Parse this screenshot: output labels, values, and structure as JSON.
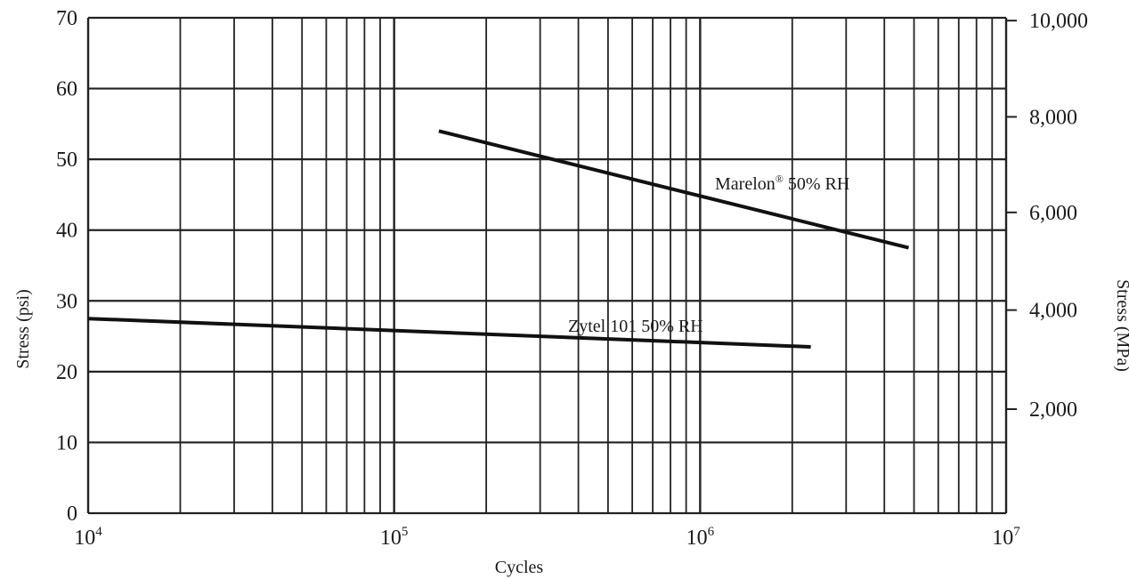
{
  "chart_data": {
    "type": "line",
    "title": "",
    "xlabel": "Cycles",
    "ylabel": "Stress (psi)",
    "y2label": "Stress (MPa)",
    "xscale": "log",
    "xlim": [
      10000,
      10000000
    ],
    "ylim": [
      0,
      70
    ],
    "grid": true,
    "x_ticks": [
      {
        "value": 10000,
        "base": "10",
        "exp": "4"
      },
      {
        "value": 100000,
        "base": "10",
        "exp": "5"
      },
      {
        "value": 1000000,
        "base": "10",
        "exp": "6"
      },
      {
        "value": 10000000,
        "base": "10",
        "exp": "7"
      }
    ],
    "y_ticks": [
      "0",
      "10",
      "20",
      "30",
      "40",
      "50",
      "60",
      "70"
    ],
    "y2_ticks": [
      {
        "label": "2,000",
        "psi": 14.7
      },
      {
        "label": "4,000",
        "psi": 28.7
      },
      {
        "label": "6,000",
        "psi": 42.5
      },
      {
        "label": "8,000",
        "psi": 56.0
      },
      {
        "label": "10,000",
        "psi": 69.6
      }
    ],
    "series": [
      {
        "name": "Marelon",
        "label_sup": "®",
        "label_rest": " 50% RH",
        "x": [
          140000,
          4800000
        ],
        "y": [
          54,
          37.5
        ]
      },
      {
        "name": "Zytel 101 50% RH",
        "x": [
          10000,
          2300000
        ],
        "y": [
          27.5,
          23.5
        ]
      }
    ]
  },
  "colors": {
    "line": "#111111",
    "grid": "#222222"
  }
}
